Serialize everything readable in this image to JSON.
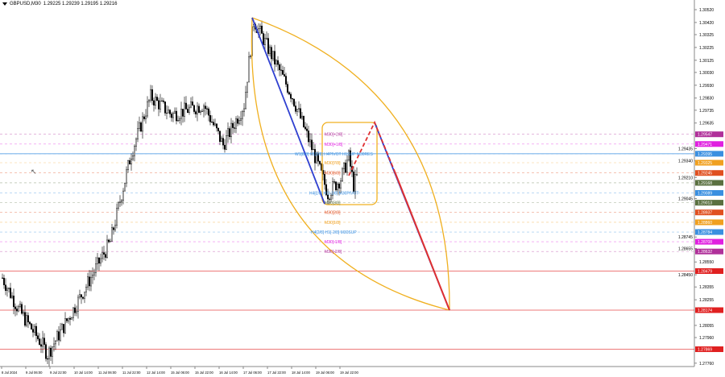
{
  "header": {
    "symbol": "GBPUSD,M30",
    "ohlc": "1.29225 1.29239 1.29195 1.29216"
  },
  "price_axis": {
    "ticks": [
      "1.30520",
      "1.30420",
      "1.30325",
      "1.30225",
      "1.30125",
      "1.30030",
      "1.29930",
      "1.29830",
      "1.29735",
      "1.29635",
      "1.29435",
      "1.29340",
      "1.29210",
      "1.29045",
      "1.28745",
      "1.28655",
      "1.28550",
      "1.28450",
      "1.28355",
      "1.28255",
      "1.28055",
      "1.27960",
      "1.27760"
    ]
  },
  "price_tags": [
    {
      "value": "1.29547",
      "color": "#b0309a"
    },
    {
      "value": "1.29471",
      "color": "#e020e0"
    },
    {
      "value": "1.29395",
      "color": "#3a8fe0"
    },
    {
      "value": "1.29325",
      "color": "#f0a020"
    },
    {
      "value": "1.29245",
      "color": "#e05020"
    },
    {
      "value": "1.29168",
      "color": "#5a7040"
    },
    {
      "value": "1.29089",
      "color": "#3a8fe0"
    },
    {
      "value": "1.29013",
      "color": "#5a7040"
    },
    {
      "value": "1.28937",
      "color": "#e05020"
    },
    {
      "value": "1.28860",
      "color": "#f0a020"
    },
    {
      "value": "1.28784",
      "color": "#3a8fe0"
    },
    {
      "value": "1.28708",
      "color": "#e020e0"
    },
    {
      "value": "1.28632",
      "color": "#b0309a"
    },
    {
      "value": "1.28479",
      "color": "#e02020"
    },
    {
      "value": "1.28174",
      "color": "#e02020"
    },
    {
      "value": "1.27869",
      "color": "#e02020"
    }
  ],
  "time_axis": [
    "8 Jul 2024",
    "9 Jul 06:00",
    "9 Jul 22:00",
    "10 Jul 14:00",
    "11 Jul 06:00",
    "11 Jul 22:00",
    "12 Jul 14:00",
    "15 Jul 06:00",
    "15 Jul 22:00",
    "16 Jul 14:00",
    "17 Jul 06:00",
    "17 Jul 22:00",
    "18 Jul 14:00",
    "19 Jul 06:00",
    "19 Jul 22:00"
  ],
  "level_labels": [
    {
      "text": "M30[+2/8]",
      "price": 1.29547,
      "color": "#b0309a",
      "x": 403
    },
    {
      "text": "M30[+1/8]",
      "price": 1.29471,
      "color": "#e020e0",
      "x": 403
    },
    {
      "text": "W1[8/8] H1[8/8] H4PIVOT H1SUP M30RES",
      "price": 1.29395,
      "color": "#3a8fe0",
      "x": 366
    },
    {
      "text": "M30[7/8]",
      "price": 1.29325,
      "color": "#f0a020",
      "x": 403
    },
    {
      "text": "M30[6/8]",
      "price": 1.29245,
      "color": "#e05020",
      "x": 403
    },
    {
      "text": "H4[2/8] H1[-1/8] M30PIVOT",
      "price": 1.29089,
      "color": "#3a8fe0",
      "x": 384
    },
    {
      "text": "M30[3/8]",
      "price": 1.29013,
      "color": "#5a7040",
      "x": 403
    },
    {
      "text": "M30[2/8]",
      "price": 1.28937,
      "color": "#e05020",
      "x": 403
    },
    {
      "text": "M30[1/8]",
      "price": 1.2886,
      "color": "#f0a020",
      "x": 403
    },
    {
      "text": "H4[2/8] H1[-2/8] M30SUP",
      "price": 1.28784,
      "color": "#3a8fe0",
      "x": 386
    },
    {
      "text": "M30[-1/8]",
      "price": 1.28708,
      "color": "#e020e0",
      "x": 403
    },
    {
      "text": "M30[-2/8]",
      "price": 1.28632,
      "color": "#b0309a",
      "x": 403
    }
  ],
  "price_path": [
    [
      0,
      1.28426
    ],
    [
      10,
      1.2818
    ],
    [
      25,
      1.279
    ],
    [
      28,
      1.27828
    ],
    [
      45,
      1.282
    ],
    [
      67,
      1.28709
    ],
    [
      80,
      1.294
    ],
    [
      92,
      1.29841
    ],
    [
      105,
      1.297
    ],
    [
      125,
      1.29778
    ],
    [
      137,
      1.29463
    ],
    [
      150,
      1.29778
    ],
    [
      156,
      1.30438
    ],
    [
      170,
      1.30092
    ],
    [
      180,
      1.29841
    ],
    [
      195,
      1.29338
    ],
    [
      202,
      1.29086
    ],
    [
      210,
      1.292
    ],
    [
      215,
      1.29369
    ],
    [
      218,
      1.29149
    ],
    [
      220,
      1.29212
    ]
  ],
  "colors": {
    "bull": "#000000",
    "bear": "#000000",
    "trend_line": "#3040d0",
    "projection": "#e03030",
    "fan": "#f0b020"
  }
}
